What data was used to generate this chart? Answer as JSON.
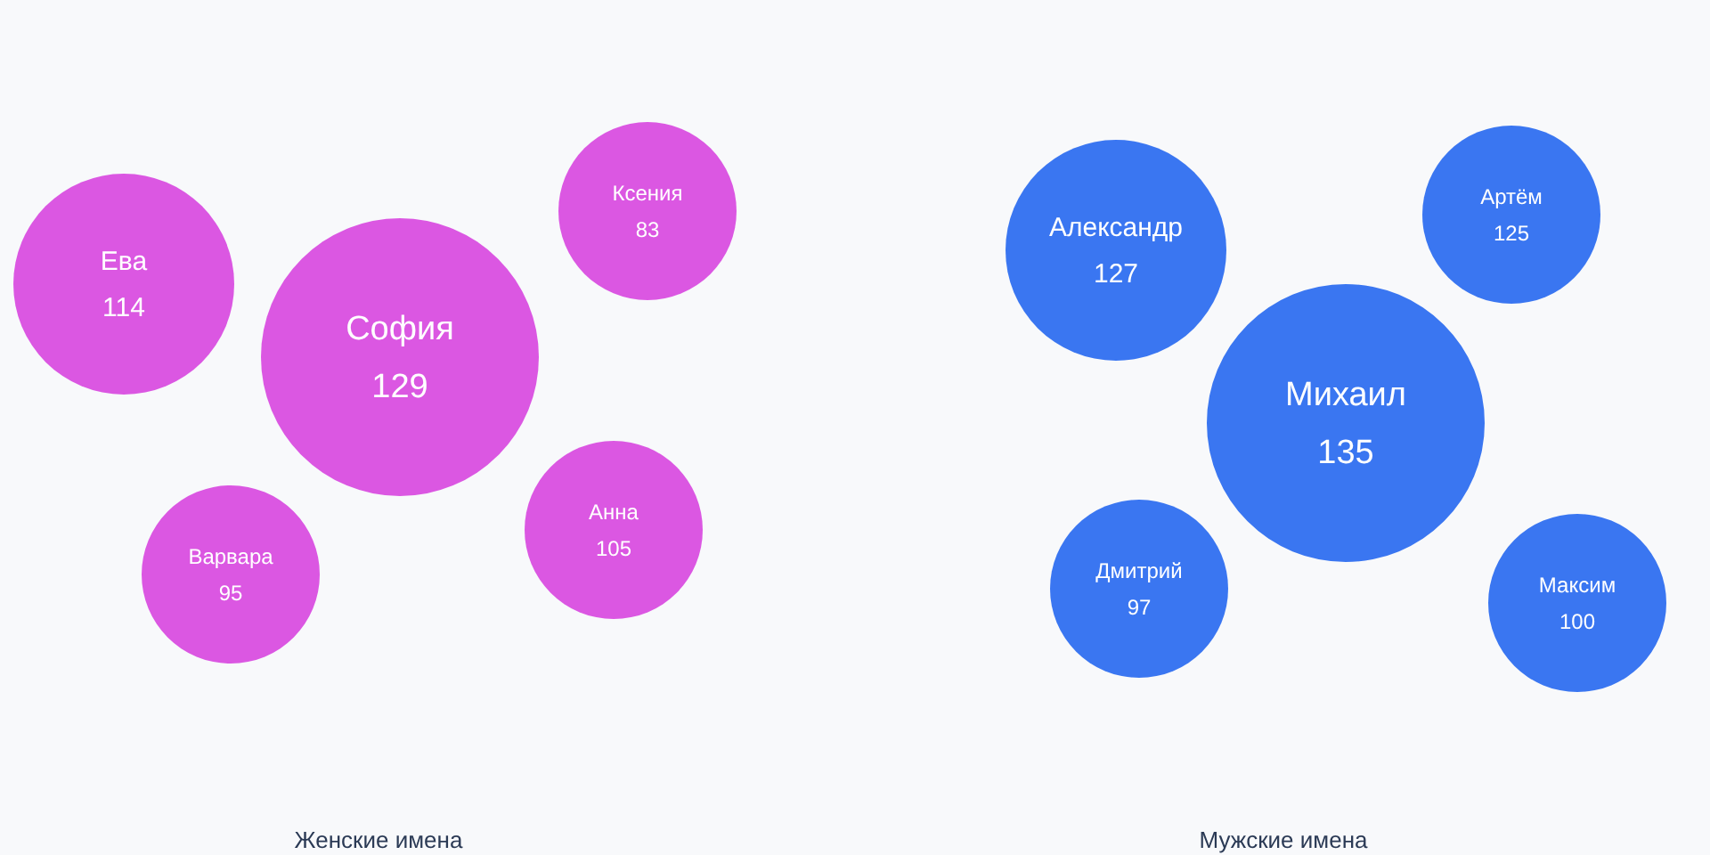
{
  "chart_data": [
    {
      "type": "other",
      "title": "Женские имена",
      "categories": [
        "София",
        "Ева",
        "Ксения",
        "Варвара",
        "Анна"
      ],
      "values": [
        129,
        114,
        83,
        95,
        105
      ],
      "color": "#d94ee0",
      "data_labels": true
    },
    {
      "type": "other",
      "title": "Мужские имена",
      "categories": [
        "Михаил",
        "Александр",
        "Артём",
        "Дмитрий",
        "Максим"
      ],
      "values": [
        135,
        127,
        125,
        97,
        100
      ],
      "color": "#2f6ff0",
      "data_labels": true
    }
  ]
}
